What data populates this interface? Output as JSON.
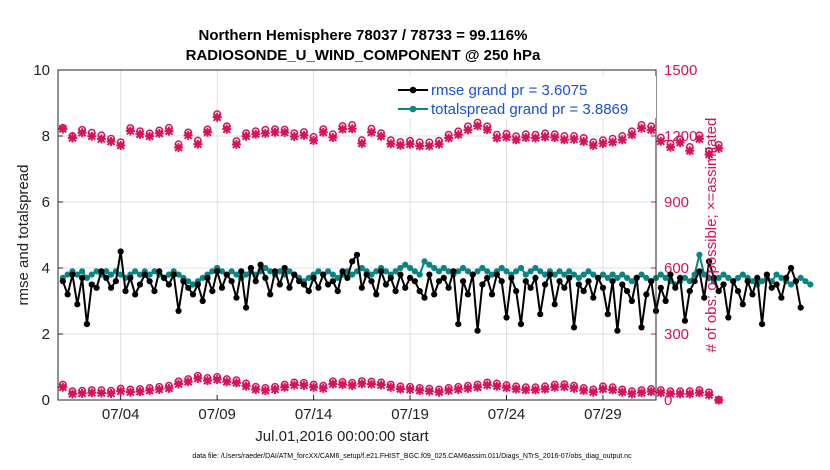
{
  "chart_data": {
    "type": "line",
    "title_line1": "Northern Hemisphere 78037 / 78733 = 99.116%",
    "title_line2": "RADIOSONDE_U_WIND_COMPONENT @ 250 hPa",
    "xlabel": "Jul.01,2016 00:00:00 start",
    "ylabel_left": "rmse and totalspread",
    "ylabel_right": "# of obs: o=possible; ×=assimilated",
    "footnote": "data file: /Users/raeder/DAI/ATM_forcXX/CAM6_setup/f.e21.FHIST_BGC.f09_025.CAM6assim.011/Diags_NTrS_2016-07/obs_diag_output.nc",
    "xlim": [
      0.75,
      31.75
    ],
    "xticks": [
      {
        "value": 4,
        "label": "07/04"
      },
      {
        "value": 9,
        "label": "07/09"
      },
      {
        "value": 14,
        "label": "07/14"
      },
      {
        "value": 19,
        "label": "07/19"
      },
      {
        "value": 24,
        "label": "07/24"
      },
      {
        "value": 29,
        "label": "07/29"
      }
    ],
    "ylim_left": [
      0,
      10
    ],
    "yticks_left": [
      "0",
      "2",
      "4",
      "6",
      "8",
      "10"
    ],
    "ylim_right": [
      0,
      1500
    ],
    "yticks_right": [
      "0",
      "300",
      "600",
      "900",
      "1200",
      "1500"
    ],
    "grid": true,
    "legend_position": "top-right",
    "series": [
      {
        "name": "rmse grand pr = 3.6075",
        "axis": "left",
        "color": "#000000",
        "start": 1.0,
        "step": 0.25,
        "values": [
          3.6,
          3.2,
          3.8,
          2.9,
          3.7,
          2.3,
          3.5,
          3.4,
          3.9,
          3.7,
          3.4,
          3.6,
          4.5,
          3.3,
          3.7,
          3.2,
          3.5,
          3.8,
          3.6,
          3.3,
          3.9,
          3.7,
          3.5,
          3.8,
          2.7,
          3.6,
          3.4,
          3.2,
          3.5,
          3.0,
          3.7,
          3.3,
          3.9,
          3.4,
          3.8,
          3.6,
          3.1,
          3.9,
          2.8,
          4.0,
          3.6,
          4.1,
          3.7,
          3.2,
          3.9,
          3.5,
          4.0,
          3.4,
          3.8,
          3.6,
          3.5,
          3.3,
          3.7,
          3.4,
          3.8,
          3.5,
          3.6,
          3.3,
          3.9,
          3.7,
          4.2,
          4.4,
          3.4,
          3.8,
          3.6,
          3.2,
          3.9,
          3.5,
          3.7,
          3.3,
          3.8,
          3.4,
          3.7,
          3.6,
          3.3,
          3.1,
          3.8,
          3.2,
          3.6,
          3.7,
          3.4,
          3.9,
          2.3,
          3.6,
          3.2,
          3.8,
          2.1,
          3.5,
          3.7,
          3.2,
          3.8,
          3.6,
          2.5,
          3.7,
          3.3,
          2.3,
          3.6,
          3.4,
          3.7,
          2.6,
          3.5,
          3.8,
          2.9,
          3.6,
          3.4,
          3.7,
          2.2,
          3.5,
          3.3,
          3.6,
          3.1,
          3.7,
          3.4,
          2.6,
          3.6,
          2.1,
          3.5,
          3.3,
          3.0,
          3.7,
          2.2,
          3.2,
          3.6,
          2.7,
          3.4,
          3.0,
          3.8,
          3.4,
          3.7,
          2.4,
          3.3,
          3.6,
          3.9,
          3.1,
          4.2,
          3.7,
          3.3,
          3.5,
          2.5,
          3.6,
          3.3,
          2.9,
          3.6,
          3.2,
          3.7,
          2.3,
          3.8,
          3.4,
          3.5,
          3.1,
          3.7,
          4.0,
          3.6,
          2.8
        ]
      },
      {
        "name": "totalspread grand pr = 3.8869",
        "axis": "left",
        "color": "#0a8582",
        "start": 1.0,
        "step": 0.25,
        "values": [
          3.7,
          3.8,
          3.9,
          3.8,
          3.9,
          3.7,
          3.8,
          3.9,
          3.8,
          3.9,
          3.8,
          3.9,
          3.8,
          3.7,
          3.8,
          3.9,
          3.8,
          3.9,
          3.8,
          3.9,
          3.8,
          3.7,
          3.8,
          3.9,
          3.8,
          3.7,
          3.6,
          3.5,
          3.6,
          3.7,
          3.8,
          3.9,
          4.0,
          3.9,
          3.8,
          3.9,
          3.8,
          3.7,
          3.8,
          3.9,
          3.8,
          3.9,
          4.0,
          3.9,
          3.8,
          3.9,
          3.8,
          3.9,
          3.8,
          3.7,
          3.6,
          3.7,
          3.8,
          3.9,
          3.8,
          3.9,
          3.8,
          3.7,
          3.8,
          3.9,
          3.8,
          3.9,
          4.0,
          3.9,
          3.8,
          3.9,
          4.0,
          3.9,
          3.8,
          3.9,
          4.0,
          4.1,
          4.0,
          3.9,
          3.8,
          4.2,
          4.1,
          4.0,
          3.9,
          4.0,
          3.9,
          3.8,
          3.9,
          4.0,
          3.9,
          3.8,
          3.9,
          4.0,
          3.9,
          3.8,
          3.9,
          4.0,
          3.9,
          3.8,
          3.9,
          4.0,
          3.8,
          3.9,
          4.0,
          3.9,
          3.8,
          3.9,
          3.8,
          3.9,
          3.8,
          3.9,
          3.8,
          3.7,
          3.8,
          3.9,
          3.8,
          3.7,
          3.8,
          3.7,
          3.8,
          3.7,
          3.8,
          3.7,
          3.6,
          3.7,
          3.8,
          3.7,
          3.6,
          3.7,
          3.8,
          3.7,
          3.6,
          3.5,
          3.6,
          3.7,
          3.6,
          3.8,
          4.4,
          3.8,
          3.7,
          3.6,
          3.7,
          3.8,
          3.7,
          3.6,
          3.7,
          3.8,
          3.7,
          3.6,
          3.5,
          3.6,
          3.7,
          3.6,
          3.8,
          3.7,
          3.6,
          3.5,
          3.6,
          3.7,
          3.6,
          3.5
        ]
      }
    ],
    "obs": {
      "axis": "right",
      "color": "#d6135a",
      "start": 1.0,
      "step": 0.5,
      "possible_upper": [
        1237,
        1200,
        1228,
        1215,
        1203,
        1188,
        1172,
        1236,
        1222,
        1212,
        1225,
        1237,
        1163,
        1216,
        1179,
        1230,
        1299,
        1244,
        1177,
        1213,
        1222,
        1228,
        1231,
        1229,
        1213,
        1218,
        1196,
        1231,
        1208,
        1245,
        1250,
        1181,
        1233,
        1213,
        1181,
        1173,
        1178,
        1171,
        1171,
        1178,
        1206,
        1221,
        1244,
        1261,
        1244,
        1206,
        1210,
        1199,
        1208,
        1206,
        1212,
        1208,
        1200,
        1200,
        1191,
        1172,
        1181,
        1188,
        1200,
        1221,
        1250,
        1244,
        1193,
        1165,
        1185,
        1150,
        1203,
        1132,
        1160
      ],
      "assimilated_upper": [
        1232,
        1191,
        1215,
        1199,
        1187,
        1175,
        1157,
        1223,
        1208,
        1199,
        1212,
        1222,
        1148,
        1203,
        1163,
        1217,
        1285,
        1231,
        1162,
        1199,
        1208,
        1212,
        1217,
        1216,
        1198,
        1203,
        1180,
        1217,
        1193,
        1231,
        1233,
        1166,
        1217,
        1199,
        1165,
        1158,
        1163,
        1155,
        1155,
        1163,
        1191,
        1206,
        1228,
        1246,
        1229,
        1191,
        1195,
        1183,
        1193,
        1191,
        1196,
        1193,
        1183,
        1185,
        1175,
        1157,
        1166,
        1172,
        1183,
        1206,
        1235,
        1228,
        1176,
        1149,
        1170,
        1133,
        1187,
        1116,
        1144
      ],
      "possible_lower": [
        70,
        40,
        42,
        45,
        45,
        42,
        52,
        48,
        50,
        55,
        60,
        65,
        85,
        95,
        110,
        100,
        105,
        95,
        90,
        75,
        60,
        55,
        60,
        70,
        80,
        78,
        70,
        65,
        85,
        82,
        78,
        86,
        84,
        80,
        70,
        62,
        60,
        55,
        52,
        48,
        55,
        60,
        65,
        70,
        80,
        75,
        68,
        62,
        58,
        58,
        62,
        70,
        72,
        65,
        55,
        48,
        62,
        58,
        48,
        40,
        45,
        50,
        45,
        40,
        40,
        40,
        45,
        35,
        0
      ],
      "assimilated_lower": [
        58,
        28,
        30,
        33,
        32,
        30,
        40,
        36,
        38,
        43,
        48,
        53,
        73,
        83,
        98,
        88,
        93,
        83,
        78,
        63,
        48,
        43,
        48,
        58,
        68,
        66,
        58,
        53,
        73,
        70,
        66,
        74,
        72,
        68,
        58,
        50,
        48,
        43,
        40,
        36,
        43,
        48,
        53,
        58,
        68,
        63,
        56,
        50,
        46,
        46,
        50,
        58,
        60,
        53,
        43,
        36,
        50,
        46,
        36,
        28,
        33,
        38,
        33,
        28,
        28,
        28,
        33,
        23,
        0
      ]
    }
  }
}
